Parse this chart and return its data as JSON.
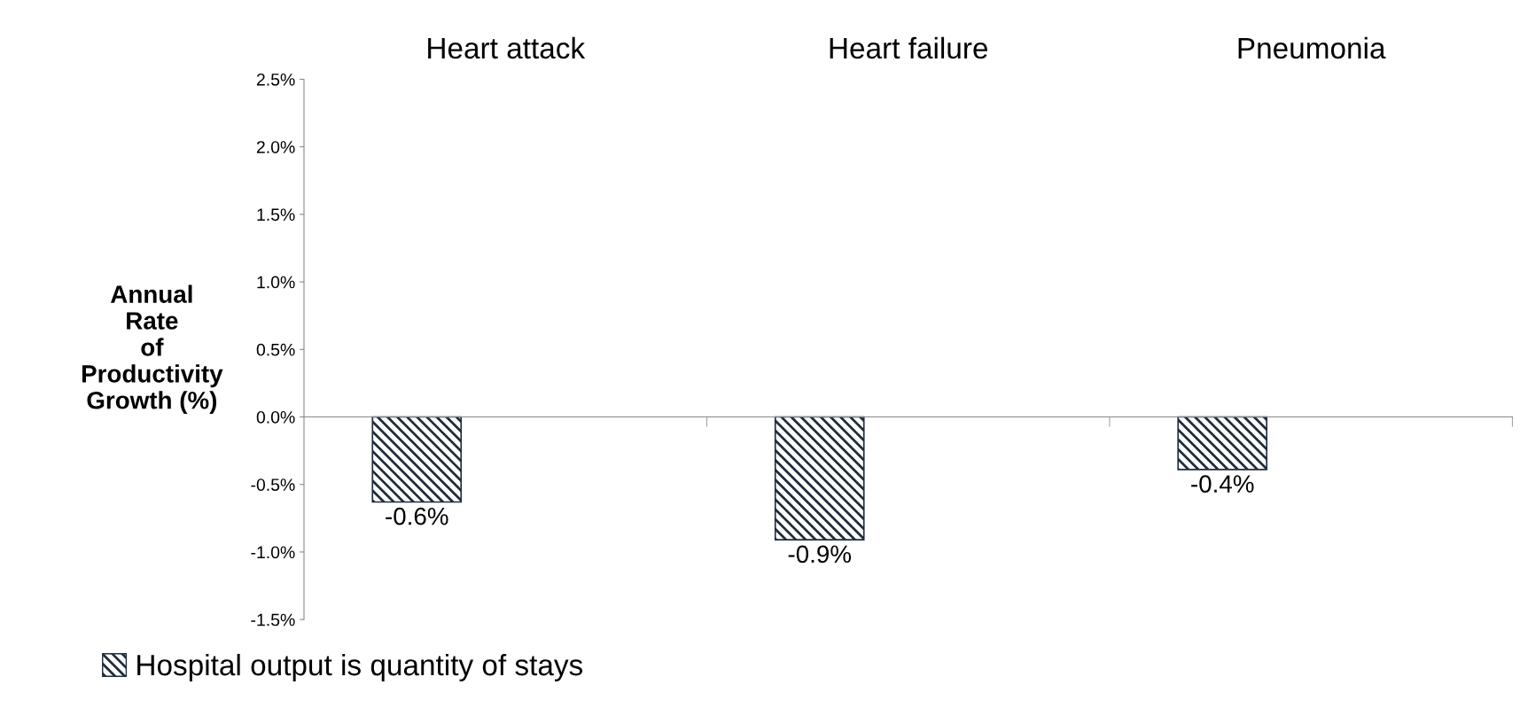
{
  "chart_data": {
    "type": "bar",
    "categories": [
      "Heart attack",
      "Heart failure",
      "Pneumonia"
    ],
    "series": [
      {
        "name": "Hospital output is quantity of stays",
        "color": "#1f2d3d",
        "values": [
          -0.63,
          -0.91,
          -0.39
        ],
        "value_labels": [
          "-0.6%",
          "-0.9%",
          "-0.4%"
        ]
      }
    ],
    "ylabel": "Annual\nRate\nof\nProductivity\nGrowth (%)",
    "ylim": [
      -1.5,
      2.5
    ],
    "yticks": [
      {
        "value": -1.5,
        "label": "-1.5%"
      },
      {
        "value": -1.0,
        "label": "-1.0%"
      },
      {
        "value": -0.5,
        "label": "-0.5%"
      },
      {
        "value": 0.0,
        "label": "0.0%"
      },
      {
        "value": 0.5,
        "label": "0.5%"
      },
      {
        "value": 1.0,
        "label": "1.0%"
      },
      {
        "value": 1.5,
        "label": "1.5%"
      },
      {
        "value": 2.0,
        "label": "2.0%"
      },
      {
        "value": 2.5,
        "label": "2.5%"
      }
    ],
    "legend": "bottom left"
  }
}
